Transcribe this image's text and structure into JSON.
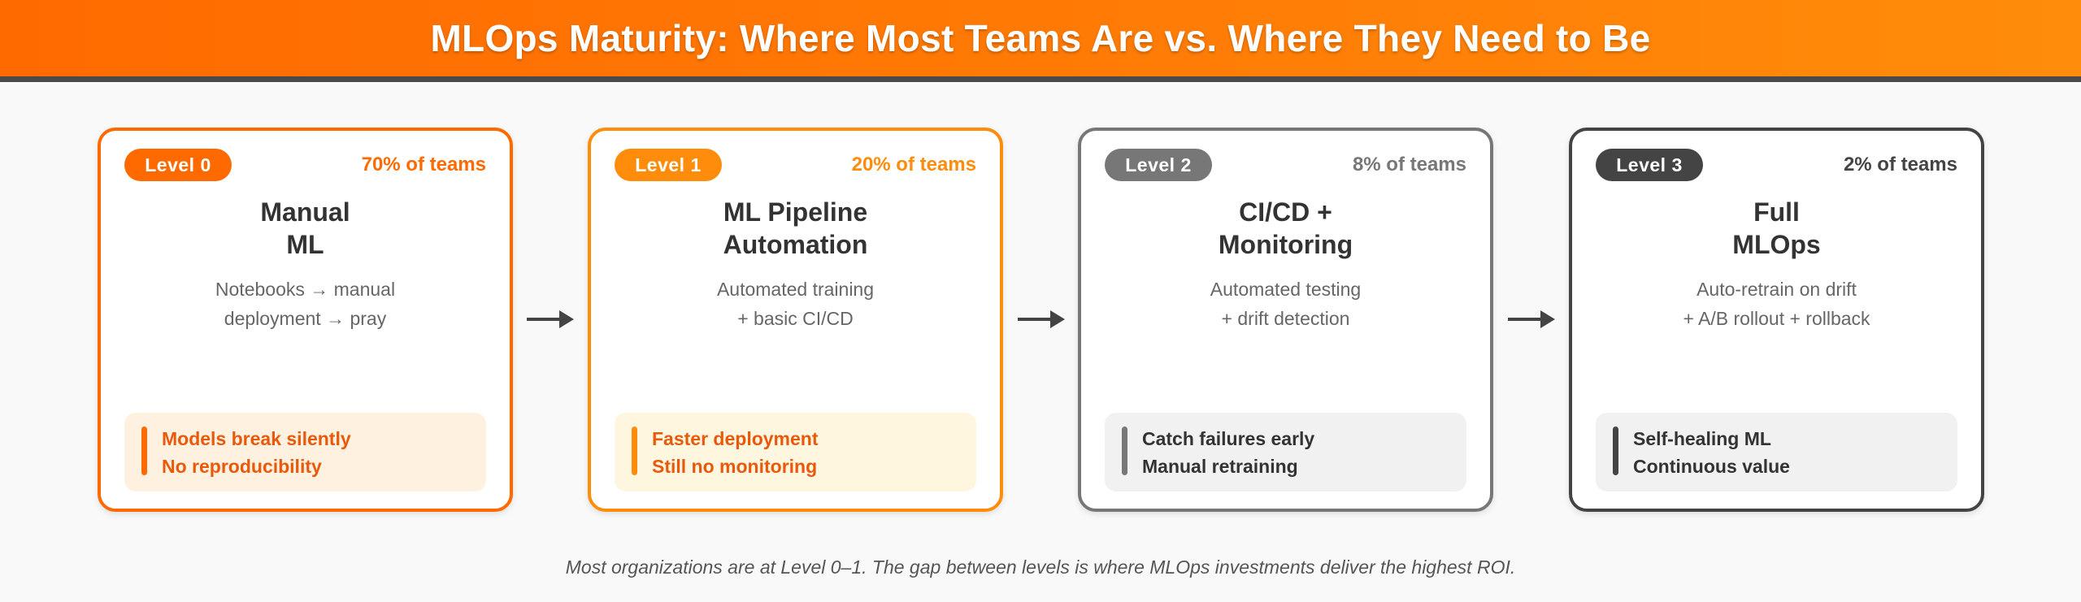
{
  "header": {
    "title": "MLOps Maturity: Where Most Teams Are vs. Where They Need to Be"
  },
  "levels": [
    {
      "badge": "Level 0",
      "share": "70% of teams",
      "title_line1": "Manual",
      "title_line2": "ML",
      "desc_line1": "Notebooks → manual",
      "desc_line2": "deployment → pray",
      "outcome_line1": "Models break silently",
      "outcome_line2": "No reproducibility",
      "colors": {
        "accent": "#ff6a00",
        "callout_bg": "#fff1e0",
        "outcome_text": "#e8590c"
      }
    },
    {
      "badge": "Level 1",
      "share": "20% of teams",
      "title_line1": "ML Pipeline",
      "title_line2": "Automation",
      "desc_line1": "Automated training",
      "desc_line2": "+ basic CI/CD",
      "outcome_line1": "Faster deployment",
      "outcome_line2": "Still no monitoring",
      "colors": {
        "accent": "#ff8c0a",
        "callout_bg": "#fff6e0",
        "outcome_text": "#e8590c"
      }
    },
    {
      "badge": "Level 2",
      "share": "8% of teams",
      "title_line1": "CI/CD +",
      "title_line2": "Monitoring",
      "desc_line1": "Automated testing",
      "desc_line2": "+ drift detection",
      "outcome_line1": "Catch failures early",
      "outcome_line2": "Manual retraining",
      "colors": {
        "accent": "#777777",
        "callout_bg": "#f1f1f1",
        "outcome_text": "#333333"
      }
    },
    {
      "badge": "Level 3",
      "share": "2% of teams",
      "title_line1": "Full",
      "title_line2": "MLOps",
      "desc_line1": "Auto-retrain on drift",
      "desc_line2": "+ A/B rollout + rollback",
      "outcome_line1": "Self-healing ML",
      "outcome_line2": "Continuous value",
      "colors": {
        "accent": "#444444",
        "callout_bg": "#f1f1f1",
        "outcome_text": "#333333"
      }
    }
  ],
  "footnote": "Most organizations are at Level 0–1. The gap between levels is where MLOps investments deliver the highest ROI."
}
